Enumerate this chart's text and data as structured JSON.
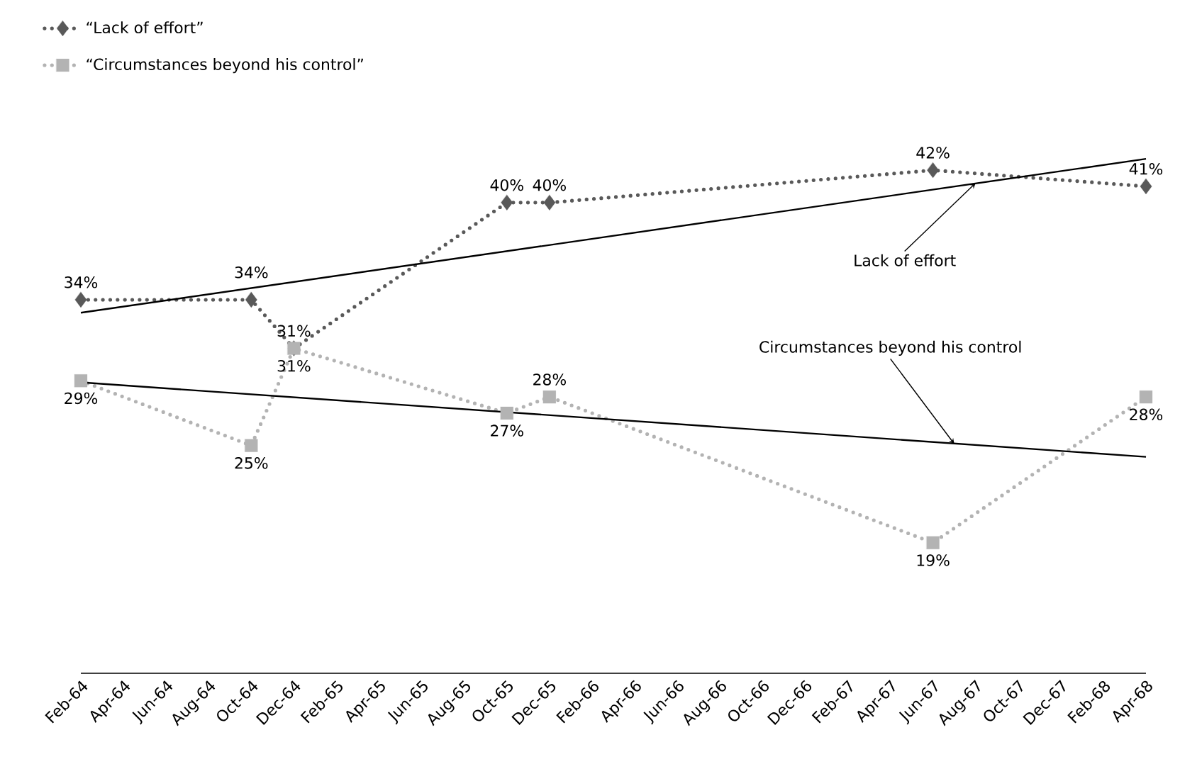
{
  "chart_data": {
    "type": "line",
    "x": [
      "1964-02",
      "1964-10",
      "1964-12",
      "1965-10",
      "1965-12",
      "1967-06",
      "1968-04"
    ],
    "series": [
      {
        "name": "“Lack of effort”",
        "color": "#595959",
        "marker": "diamond",
        "line_style": "dotted",
        "values": [
          34,
          34,
          31,
          40,
          40,
          42,
          41
        ],
        "value_labels": [
          "34%",
          "34%",
          "31%",
          "40%",
          "40%",
          "42%",
          "41%"
        ]
      },
      {
        "name": "“Circumstances beyond his control”",
        "color": "#b3b3b3",
        "marker": "square",
        "line_style": "dotted",
        "values": [
          29,
          25,
          31,
          27,
          28,
          19,
          28
        ],
        "value_labels": [
          "29%",
          "25%",
          "31%",
          "27%",
          "28%",
          "19%",
          "28%"
        ]
      },
      {
        "type": "line",
        "color": "#000000",
        "marker": "none",
        "line_style": "solid",
        "x": [
          "1964-02",
          "1968-04"
        ],
        "values": [
          33.2,
          42.7
        ]
      },
      {
        "type": "line",
        "color": "#000000",
        "marker": "none",
        "line_style": "solid",
        "x": [
          "1964-02",
          "1968-04"
        ],
        "values": [
          28.9,
          24.3
        ]
      }
    ],
    "xlim": [
      "1964-02",
      "1968-04"
    ],
    "xticks": [
      {
        "value": "1964-02",
        "label": "Feb-64"
      },
      {
        "value": "1964-04",
        "label": "Apr-64"
      },
      {
        "value": "1964-06",
        "label": "Jun-64"
      },
      {
        "value": "1964-08",
        "label": "Aug-64"
      },
      {
        "value": "1964-10",
        "label": "Oct-64"
      },
      {
        "value": "1964-12",
        "label": "Dec-64"
      },
      {
        "value": "1965-02",
        "label": "Feb-65"
      },
      {
        "value": "1965-04",
        "label": "Apr-65"
      },
      {
        "value": "1965-06",
        "label": "Jun-65"
      },
      {
        "value": "1965-08",
        "label": "Aug-65"
      },
      {
        "value": "1965-10",
        "label": "Oct-65"
      },
      {
        "value": "1965-12",
        "label": "Dec-65"
      },
      {
        "value": "1966-02",
        "label": "Feb-66"
      },
      {
        "value": "1966-04",
        "label": "Apr-66"
      },
      {
        "value": "1966-06",
        "label": "Jun-66"
      },
      {
        "value": "1966-08",
        "label": "Aug-66"
      },
      {
        "value": "1966-10",
        "label": "Oct-66"
      },
      {
        "value": "1966-12",
        "label": "Dec-66"
      },
      {
        "value": "1967-02",
        "label": "Feb-67"
      },
      {
        "value": "1967-04",
        "label": "Apr-67"
      },
      {
        "value": "1967-06",
        "label": "Jun-67"
      },
      {
        "value": "1967-08",
        "label": "Aug-67"
      },
      {
        "value": "1967-10",
        "label": "Oct-67"
      },
      {
        "value": "1967-12",
        "label": "Dec-67"
      },
      {
        "value": "1968-02",
        "label": "Feb-68"
      },
      {
        "value": "1968-04",
        "label": "Apr-68"
      }
    ],
    "tick_labels": "x",
    "legend": "top left",
    "annotations": [
      {
        "text": "Lack of effort",
        "x": "1967-08",
        "y": 41.2
      },
      {
        "text": "Circumstances beyond his control",
        "x": "1967-07",
        "y": 25.1
      }
    ]
  }
}
